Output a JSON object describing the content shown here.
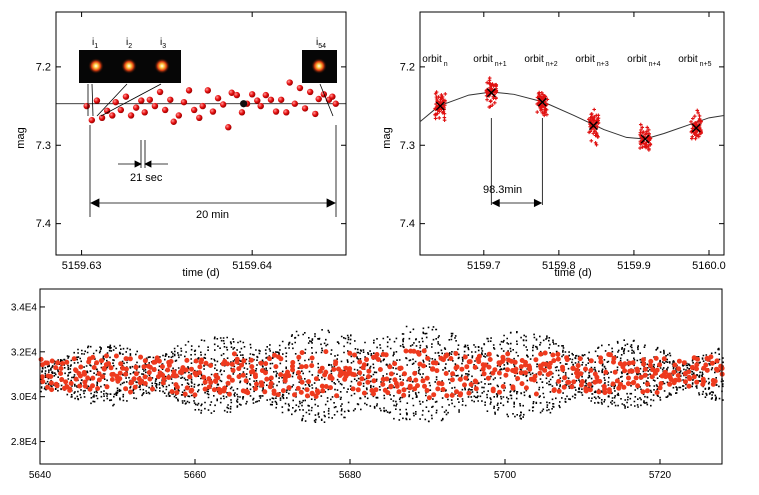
{
  "chart_data": [
    {
      "type": "scatter",
      "xlabel": "time (d)",
      "ylabel": "mag",
      "xlim": [
        5159.6285,
        5159.6455
      ],
      "ylim": [
        7.44,
        7.13
      ],
      "y_inverted": true,
      "x_ticks": [
        5159.63,
        5159.64
      ],
      "x_tick_labels": [
        "5159.63",
        "5159.64"
      ],
      "y_ticks": [
        7.2,
        7.3,
        7.4
      ],
      "y_tick_labels": [
        "7.2",
        "7.3",
        "7.4"
      ],
      "reference_line": 7.247,
      "series": [
        {
          "marker": "red-sphere",
          "x": [
            5159.6303,
            5159.6306,
            5159.6309,
            5159.6312,
            5159.6315,
            5159.6318,
            5159.632,
            5159.6323,
            5159.6326,
            5159.6329,
            5159.6332,
            5159.6335,
            5159.6337,
            5159.634,
            5159.6343,
            5159.6346,
            5159.6349,
            5159.6352,
            5159.6354,
            5159.6357,
            5159.636,
            5159.6363,
            5159.6366,
            5159.6369,
            5159.6371,
            5159.6374,
            5159.6377,
            5159.638,
            5159.6383,
            5159.6386,
            5159.6388,
            5159.6391,
            5159.6394,
            5159.6397,
            5159.64,
            5159.6403,
            5159.6405,
            5159.6408,
            5159.6411,
            5159.6414,
            5159.6417,
            5159.642,
            5159.6422,
            5159.6425,
            5159.6428,
            5159.6431,
            5159.6434,
            5159.6437,
            5159.6439,
            5159.6442,
            5159.6445,
            5159.6447,
            5159.6449
          ],
          "y": [
            7.25,
            7.268,
            7.243,
            7.265,
            7.256,
            7.262,
            7.245,
            7.255,
            7.238,
            7.262,
            7.252,
            7.243,
            7.258,
            7.242,
            7.25,
            7.232,
            7.255,
            7.242,
            7.27,
            7.262,
            7.245,
            7.23,
            7.255,
            7.265,
            7.25,
            7.23,
            7.257,
            7.24,
            7.248,
            7.277,
            7.233,
            7.236,
            7.258,
            7.247,
            7.235,
            7.243,
            7.25,
            7.236,
            7.242,
            7.257,
            7.242,
            7.258,
            7.22,
            7.247,
            7.227,
            7.253,
            7.232,
            7.26,
            7.241,
            7.235,
            7.242,
            7.238,
            7.247
          ]
        }
      ],
      "highlight_point": {
        "x": 5159.6395,
        "y": 7.247
      },
      "annotations": {
        "insets": [
          "i1",
          "i2",
          "i3",
          "i54"
        ],
        "interval_small": "21 sec",
        "interval_total": "20 min"
      }
    },
    {
      "type": "scatter",
      "xlabel": "time (d)",
      "ylabel": "mag",
      "xlim": [
        5159.615,
        5160.02
      ],
      "ylim": [
        7.44,
        7.13
      ],
      "y_inverted": true,
      "x_ticks": [
        5159.7,
        5159.8,
        5159.9,
        5160.0
      ],
      "x_tick_labels": [
        "5159.7",
        "5159.8",
        "5159.9",
        "5160.0"
      ],
      "y_ticks": [
        7.2,
        7.3,
        7.4
      ],
      "y_tick_labels": [
        "7.2",
        "7.3",
        "7.4"
      ],
      "orbits": [
        {
          "label": "orbit",
          "sub": "n",
          "x": 5159.642,
          "mean": 7.25
        },
        {
          "label": "orbit",
          "sub": "n+1",
          "x": 5159.71,
          "mean": 7.233
        },
        {
          "label": "orbit",
          "sub": "n+2",
          "x": 5159.778,
          "mean": 7.245
        },
        {
          "label": "orbit",
          "sub": "n+3",
          "x": 5159.846,
          "mean": 7.275
        },
        {
          "label": "orbit",
          "sub": "n+4",
          "x": 5159.915,
          "mean": 7.292
        },
        {
          "label": "orbit",
          "sub": "n+5",
          "x": 5159.983,
          "mean": 7.278
        }
      ],
      "fit_curve": {
        "x": [
          5159.615,
          5159.64,
          5159.66,
          5159.68,
          5159.71,
          5159.74,
          5159.78,
          5159.82,
          5159.86,
          5159.89,
          5159.915,
          5159.94,
          5159.97,
          5160.0,
          5160.02
        ],
        "y": [
          7.27,
          7.25,
          7.243,
          7.236,
          7.232,
          7.235,
          7.245,
          7.262,
          7.28,
          7.29,
          7.292,
          7.285,
          7.275,
          7.265,
          7.262
        ]
      },
      "annotations": {
        "period": "98.3min"
      }
    },
    {
      "type": "scatter",
      "xlabel": "",
      "ylabel": "",
      "xlim": [
        5640,
        5728
      ],
      "ylim": [
        27000,
        34800
      ],
      "x_ticks": [
        5640,
        5660,
        5680,
        5700,
        5720
      ],
      "x_tick_labels": [
        "5640",
        "5660",
        "5680",
        "5700",
        "5720"
      ],
      "y_ticks": [
        28000,
        30000,
        32000,
        34000
      ],
      "y_tick_labels": [
        "2.8E4",
        "3.0E4",
        "3.2E4",
        "3.4E4"
      ],
      "series": [
        {
          "marker": "black-points",
          "mean": 31000,
          "typical_amplitude": 1800,
          "max_amplitude": 3600
        },
        {
          "marker": "red-points",
          "mean": 31000,
          "typical_amplitude": 800
        }
      ]
    }
  ]
}
